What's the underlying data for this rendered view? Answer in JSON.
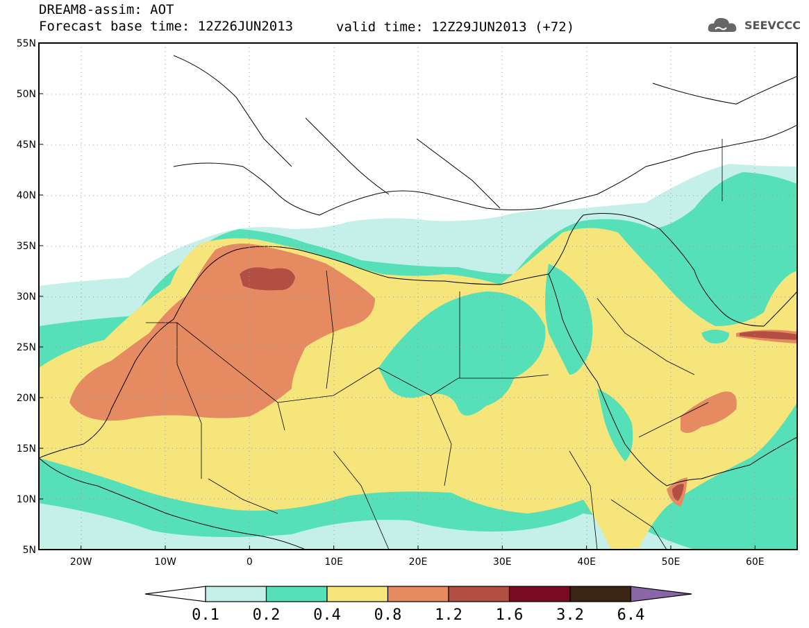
{
  "title": {
    "line1": "DREAM8-assim: AOT",
    "line2": "Forecast base time: 12Z26JUN2013",
    "valid": "valid time: 12Z29JUN2013 (+72)"
  },
  "logo": {
    "text": "SEEVCCC",
    "icon": "cloud-icon"
  },
  "map": {
    "lat_labels": [
      "55N",
      "50N",
      "45N",
      "40N",
      "35N",
      "30N",
      "25N",
      "20N",
      "15N",
      "10N",
      "5N"
    ],
    "lon_labels": [
      "20W",
      "10W",
      "0",
      "10E",
      "20E",
      "30E",
      "40E",
      "50E",
      "60E"
    ],
    "lat_range": [
      5,
      55
    ],
    "lon_range": [
      -25,
      65
    ]
  },
  "colorbar": {
    "labels": [
      "0.1",
      "0.2",
      "0.4",
      "0.8",
      "1.2",
      "1.6",
      "3.2",
      "6.4"
    ],
    "colors": [
      "#ffffff",
      "#c5f0ea",
      "#56e0b8",
      "#f5e57a",
      "#e68a62",
      "#b34e43",
      "#7a0a22",
      "#3c2514",
      "#8a66a8"
    ]
  },
  "palette": {
    "c01": "#c5f0ea",
    "c02": "#56e0b8",
    "c04": "#f5e57a",
    "c08": "#e68a62",
    "c12": "#b34e43"
  }
}
